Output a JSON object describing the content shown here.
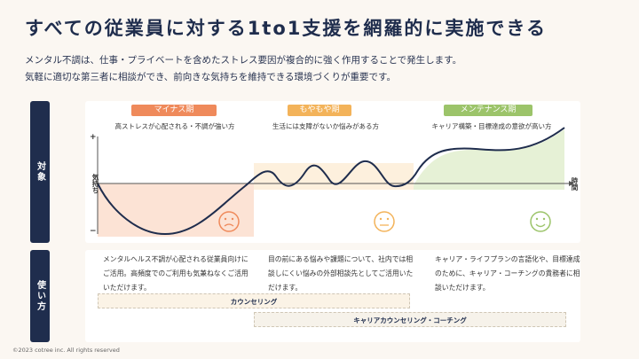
{
  "title": "すべての従業員に対する1to1支援を網羅的に実施できる",
  "subtitle_line1": "メンタル不調は、仕事・プライベートを含めたストレス要因が複合的に強く作用することで発生します。",
  "subtitle_line2": "気軽に適切な第三者に相談ができ、前向きな気持ちを維持できる環境づくりが重要です。",
  "side_labels": {
    "target": "対象",
    "usage": "使い方"
  },
  "phases": [
    {
      "label": "マイナス期",
      "color": "#ef8a5b",
      "description": "高ストレスが心配される・不調が強い方",
      "face": "sad-face-icon"
    },
    {
      "label": "もやもや期",
      "color": "#f3b35a",
      "description": "生活には支障がないか悩みがある方",
      "face": "neutral-face-icon"
    },
    {
      "label": "メンテナンス期",
      "color": "#9cc46a",
      "description": "キャリア構築・目標達成の意欲が高い方",
      "face": "happy-face-icon"
    }
  ],
  "chart_axes": {
    "plus": "+",
    "minus": "−",
    "y_label": "気持ち",
    "x_label": "時間"
  },
  "usage": [
    "メンタルヘルス不調が心配される従業員向けにご活用。高頻度でのご利用も気兼ねなくご活用いただけます。",
    "目の前にある悩みや課題について、社内では相談しにくい悩みの外部相談先としてご活用いただけます。",
    "キャリア・ライフプランの言語化や、目標達成のために、キャリア・コーチングの貴務者に相談いただけます。"
  ],
  "bars": {
    "counseling": "カウンセリング",
    "career": "キャリアカウンセリング・コーチング"
  },
  "footer": "©2023 cotree inc. All rights reserved"
}
